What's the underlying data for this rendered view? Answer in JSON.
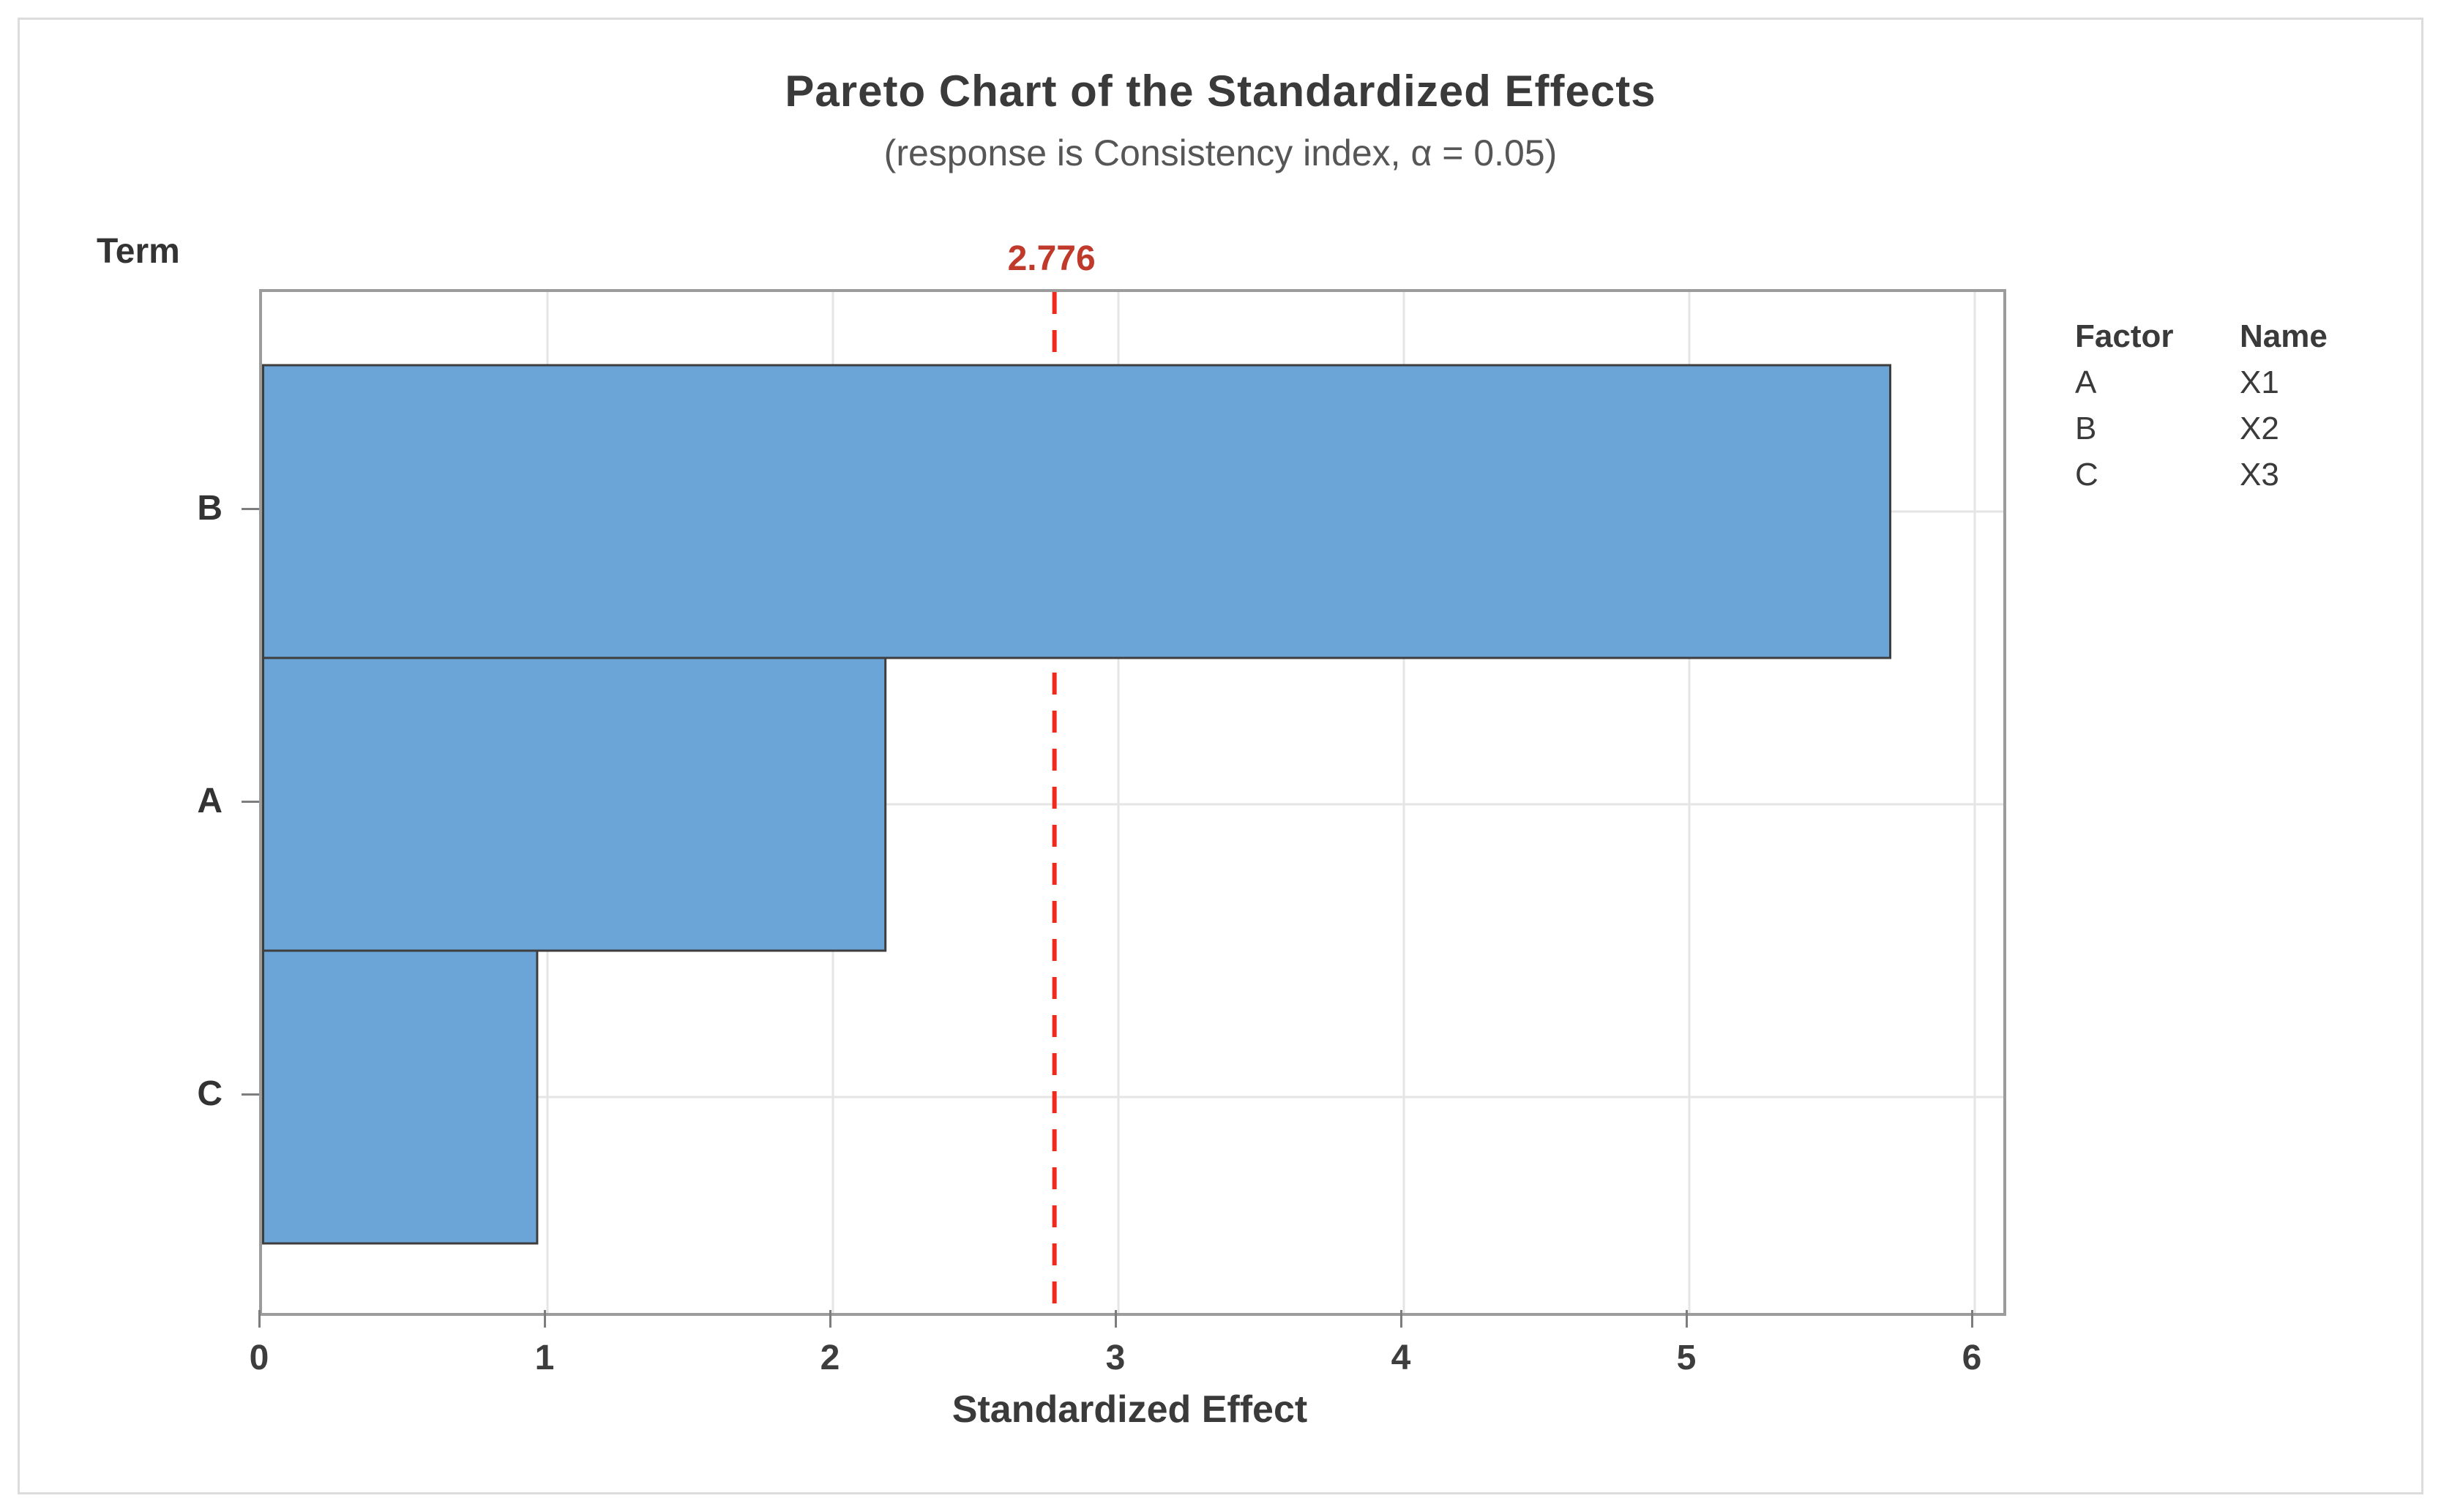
{
  "page": {
    "background": "#ffffff",
    "border_color": "#dcdcdc"
  },
  "chart_data": {
    "type": "bar",
    "orientation": "horizontal",
    "title": "Pareto Chart of the Standardized Effects",
    "subtitle": "(response is Consistency index, α = 0.05)",
    "xlabel": "Standardized Effect",
    "ylabel": "Term",
    "categories": [
      "B",
      "A",
      "C"
    ],
    "values": [
      5.7,
      2.18,
      0.96
    ],
    "x_ticks": [
      "0",
      "1",
      "2",
      "3",
      "4",
      "5",
      "6"
    ],
    "xlim": [
      0,
      6.1
    ],
    "grid": {
      "vertical_at_ticks": true,
      "horizontal_at_category_centers": true
    },
    "reference_line": {
      "value": 2.776,
      "label": "2.776"
    },
    "legend": {
      "position": "right",
      "headers": [
        "Factor",
        "Name"
      ],
      "rows": [
        {
          "factor": "A",
          "name": "X1"
        },
        {
          "factor": "B",
          "name": "X2"
        },
        {
          "factor": "C",
          "name": "X3"
        }
      ]
    },
    "colors": {
      "bar_fill": "#6ba5d8",
      "bar_border": "#3e3e3e",
      "reference_line": "#f1281c",
      "reference_label": "#bf3a2b",
      "axis_frame": "#9c9c9c",
      "gridline": "#e5e5e5",
      "tick_mark": "#7d7d7d",
      "text_dark": "#3a3a3a",
      "text_subtle": "#565656"
    }
  }
}
